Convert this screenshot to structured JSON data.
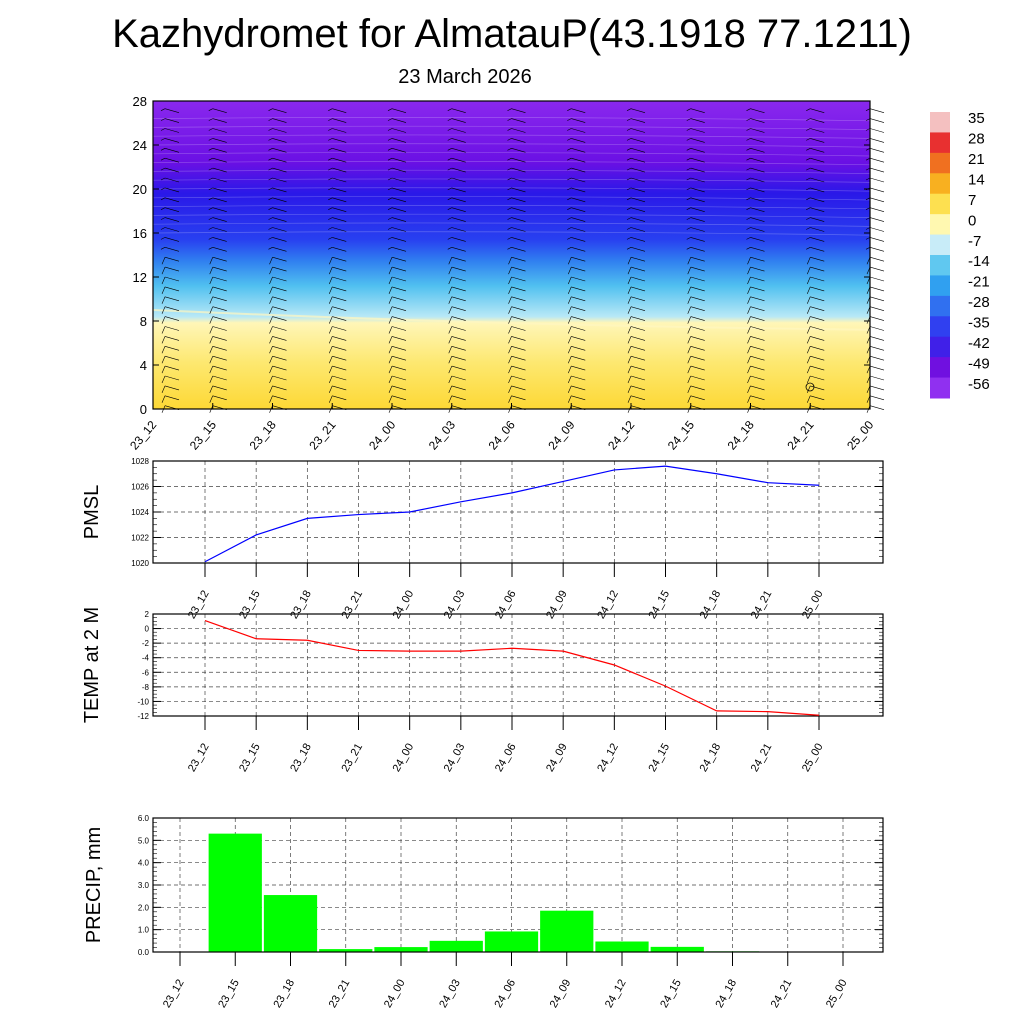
{
  "title": "Kazhydromet for AlmatauP(43.1918 77.1211)",
  "subtitle": "23 March 2026",
  "chart_data": [
    {
      "type": "heatmap",
      "name": "vertical cross-section temperature with wind barbs",
      "x_ticks": [
        "23_12",
        "23_15",
        "23_18",
        "23_21",
        "24_00",
        "24_03",
        "24_06",
        "24_09",
        "24_12",
        "24_15",
        "24_18",
        "24_21",
        "25_00"
      ],
      "y_ticks": [
        "0",
        "4",
        "8",
        "12",
        "16",
        "20",
        "24",
        "28"
      ],
      "ylim": [
        0,
        28
      ],
      "colorbar": {
        "labels": [
          "35",
          "28",
          "21",
          "14",
          "7",
          "0",
          "-7",
          "-14",
          "-21",
          "-28",
          "-35",
          "-42",
          "-49",
          "-56"
        ],
        "colors": [
          "#f4c0c0",
          "#e83030",
          "#f07020",
          "#f8b020",
          "#fde050",
          "#fff8b0",
          "#c8ecf8",
          "#60c8f0",
          "#30a0f0",
          "#3070f0",
          "#3040f0",
          "#4020e8",
          "#7010e0",
          "#9030f0"
        ]
      }
    },
    {
      "type": "line",
      "ylabel": "PMSL",
      "color": "#0000ff",
      "x": [
        "23_12",
        "23_15",
        "23_18",
        "23_21",
        "24_00",
        "24_03",
        "24_06",
        "24_09",
        "24_12",
        "24_15",
        "24_18",
        "24_21",
        "25_00"
      ],
      "values": [
        1020.1,
        1022.2,
        1023.5,
        1023.8,
        1024.0,
        1024.8,
        1025.5,
        1026.4,
        1027.3,
        1027.6,
        1027.0,
        1026.3,
        1026.1
      ],
      "ylim": [
        1020,
        1028
      ],
      "y_ticks": [
        "1020",
        "1022",
        "1024",
        "1026",
        "1028"
      ]
    },
    {
      "type": "line",
      "ylabel": "TEMP at 2 M",
      "color": "#ff0000",
      "x": [
        "23_12",
        "23_15",
        "23_18",
        "23_21",
        "24_00",
        "24_03",
        "24_06",
        "24_09",
        "24_12",
        "24_15",
        "24_18",
        "24_21",
        "25_00"
      ],
      "values": [
        1.1,
        -1.4,
        -1.6,
        -3.0,
        -3.1,
        -3.1,
        -2.7,
        -3.1,
        -5.0,
        -7.9,
        -11.3,
        -11.4,
        -11.9
      ],
      "ylim": [
        -12,
        2
      ],
      "y_ticks": [
        "2",
        "0",
        "-2",
        "-4",
        "-6",
        "-8",
        "-10",
        "-12"
      ]
    },
    {
      "type": "bar",
      "ylabel": "PRECIP, mm",
      "color": "#00ff00",
      "categories": [
        "23_12",
        "23_15",
        "23_18",
        "23_21",
        "24_00",
        "24_03",
        "24_06",
        "24_09",
        "24_12",
        "24_15",
        "24_18",
        "24_21",
        "25_00"
      ],
      "values": [
        0,
        5.3,
        2.55,
        0.13,
        0.22,
        0.5,
        0.92,
        1.85,
        0.47,
        0.23,
        0.03,
        0,
        0
      ],
      "ylim": [
        0,
        6
      ],
      "y_ticks": [
        "0.0",
        "1.0",
        "2.0",
        "3.0",
        "4.0",
        "5.0",
        "6.0"
      ]
    }
  ]
}
